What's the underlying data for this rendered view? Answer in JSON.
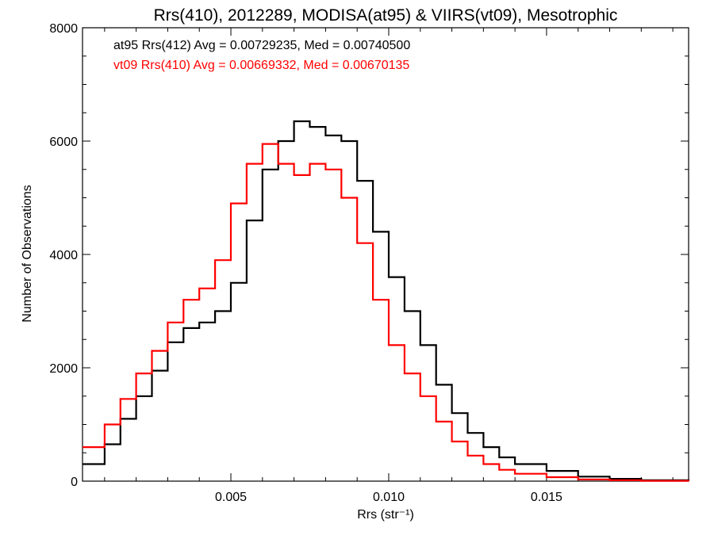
{
  "chart_data": {
    "type": "line",
    "title": "Rrs(410), 2012289, MODISA(at95) & VIIRS(vt09), Mesotrophic",
    "xlabel": "Rrs (str⁻¹)",
    "ylabel": "Number of Observations",
    "xlim": [
      0.0003,
      0.0195
    ],
    "ylim": [
      0,
      8000
    ],
    "xticks": [
      0.005,
      0.01,
      0.015
    ],
    "xtick_labels": [
      "0.005",
      "0.010",
      "0.015"
    ],
    "yticks": [
      0,
      2000,
      4000,
      6000,
      8000
    ],
    "ytick_labels": [
      "0",
      "2000",
      "4000",
      "6000",
      "8000"
    ],
    "grid": false,
    "legend_position": "top-left",
    "series": [
      {
        "name": "at95 Rrs(412) Avg = 0.00729235, Med = 0.00740500",
        "color": "#000000",
        "x": [
          0.0003,
          0.001,
          0.0015,
          0.002,
          0.0025,
          0.003,
          0.0035,
          0.004,
          0.0045,
          0.005,
          0.0055,
          0.006,
          0.0065,
          0.007,
          0.0075,
          0.008,
          0.0085,
          0.009,
          0.0095,
          0.01,
          0.0105,
          0.011,
          0.0115,
          0.012,
          0.0125,
          0.013,
          0.0135,
          0.014,
          0.015,
          0.016,
          0.017,
          0.018,
          0.0195
        ],
        "y": [
          300,
          650,
          1100,
          1500,
          1950,
          2450,
          2700,
          2800,
          3000,
          3500,
          4600,
          5500,
          6000,
          6350,
          6250,
          6100,
          6000,
          5300,
          4400,
          3600,
          3000,
          2400,
          1700,
          1200,
          850,
          600,
          420,
          300,
          180,
          80,
          40,
          15,
          5
        ]
      },
      {
        "name": "vt09 Rrs(410) Avg = 0.00669332, Med = 0.00670135",
        "color": "#ff0000",
        "x": [
          0.0003,
          0.001,
          0.0015,
          0.002,
          0.0025,
          0.003,
          0.0035,
          0.004,
          0.0045,
          0.005,
          0.0055,
          0.006,
          0.0065,
          0.007,
          0.0075,
          0.008,
          0.0085,
          0.009,
          0.0095,
          0.01,
          0.0105,
          0.011,
          0.0115,
          0.012,
          0.0125,
          0.013,
          0.0135,
          0.014,
          0.015,
          0.016,
          0.017,
          0.018,
          0.0195
        ],
        "y": [
          600,
          1000,
          1450,
          1900,
          2300,
          2800,
          3200,
          3400,
          3900,
          4900,
          5600,
          5950,
          5600,
          5400,
          5600,
          5500,
          5000,
          4200,
          3200,
          2400,
          1900,
          1500,
          1050,
          700,
          450,
          300,
          200,
          130,
          70,
          30,
          15,
          5,
          2
        ]
      }
    ]
  }
}
